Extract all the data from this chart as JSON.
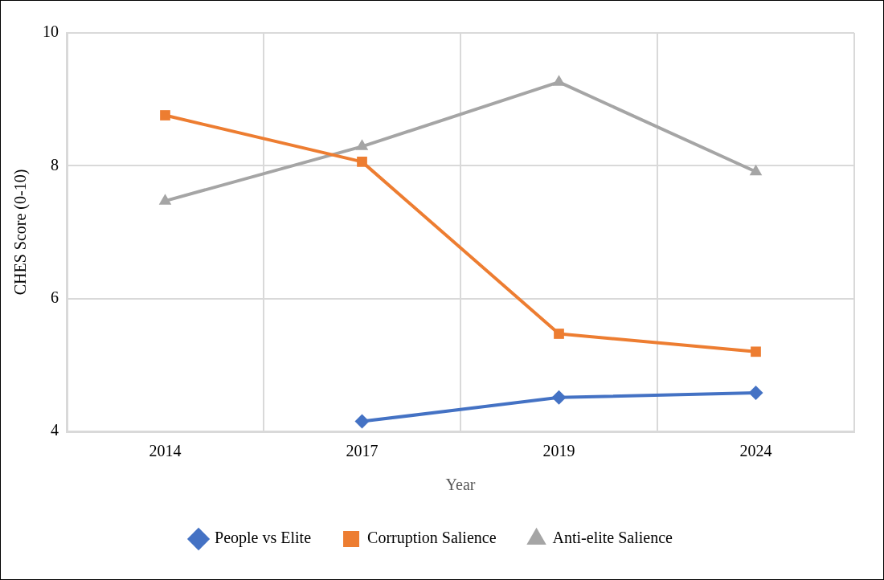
{
  "chart_data": {
    "type": "line",
    "xlabel": "Year",
    "ylabel": "CHES Score (0-10)",
    "categories": [
      "2014",
      "2017",
      "2019",
      "2024"
    ],
    "series": [
      {
        "name": "People vs Elite",
        "color": "#4472c4",
        "marker": "diamond",
        "values": [
          null,
          4.15,
          4.51,
          4.58
        ]
      },
      {
        "name": "Corruption Salience",
        "color": "#ed7d31",
        "marker": "square",
        "values": [
          8.76,
          8.06,
          5.47,
          5.2
        ]
      },
      {
        "name": "Anti-elite Salience",
        "color": "#a5a5a5",
        "marker": "triangle",
        "values": [
          7.47,
          8.29,
          9.26,
          7.91
        ]
      }
    ],
    "ylim": [
      4,
      10
    ],
    "yticks": [
      4,
      6,
      8,
      10
    ],
    "grid": true,
    "legend": "bottom",
    "line_style": "solid"
  }
}
